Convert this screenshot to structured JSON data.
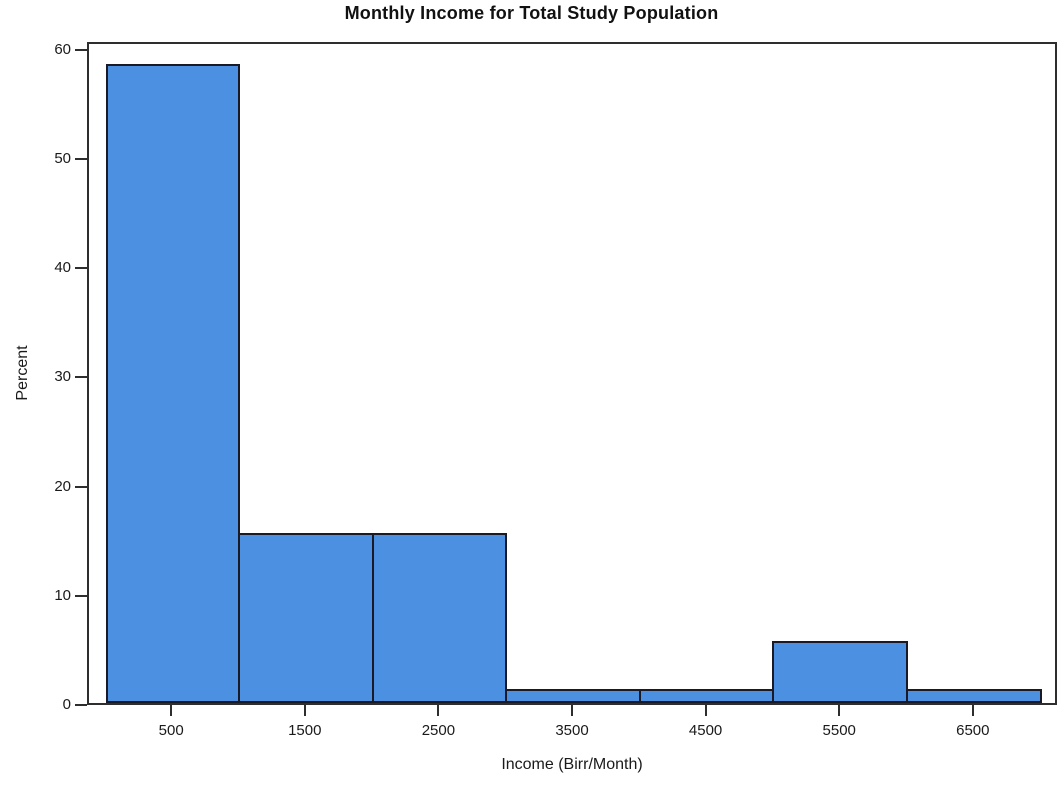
{
  "chart_data": {
    "type": "bar",
    "subtype": "histogram",
    "title": "Monthly Income for Total Study Population",
    "xlabel": "Income (Birr/Month)",
    "ylabel": "Percent",
    "bin_width": 1000,
    "bin_edges": [
      0,
      1000,
      2000,
      3000,
      4000,
      5000,
      6000,
      7000
    ],
    "bin_centers": [
      500,
      1500,
      2500,
      3500,
      4500,
      5500,
      6500
    ],
    "values_percent": [
      58.5,
      15.6,
      15.6,
      1.3,
      1.3,
      5.7,
      1.3
    ],
    "x_ticks": [
      500,
      1500,
      2500,
      3500,
      4500,
      5500,
      6500
    ],
    "y_ticks": [
      0,
      10,
      20,
      30,
      40,
      50,
      60
    ],
    "xlim": [
      -130,
      7130
    ],
    "ylim": [
      0,
      60.7
    ],
    "grid": false,
    "legend": null,
    "frame": true,
    "colors": {
      "bar_fill": "#4b90e1",
      "bar_border": "#1a1a26",
      "axis": "#2e2e2e",
      "text": "#1a1a1a",
      "background": "#ffffff"
    }
  }
}
